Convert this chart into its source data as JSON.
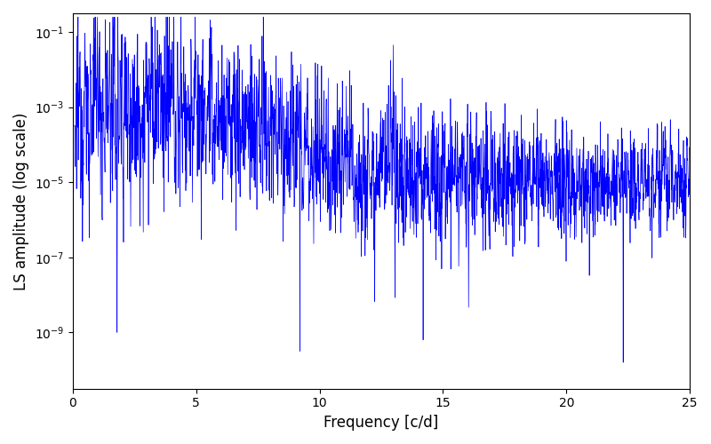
{
  "xlabel": "Frequency [c/d]",
  "ylabel": "LS amplitude (log scale)",
  "xlim": [
    0,
    25
  ],
  "ylim_log": [
    -10.5,
    -0.5
  ],
  "line_color": "#0000ff",
  "background_color": "#ffffff",
  "figsize": [
    8.0,
    5.0
  ],
  "dpi": 100,
  "seed": 12345,
  "n_points": 2500,
  "freq_max": 25.0
}
